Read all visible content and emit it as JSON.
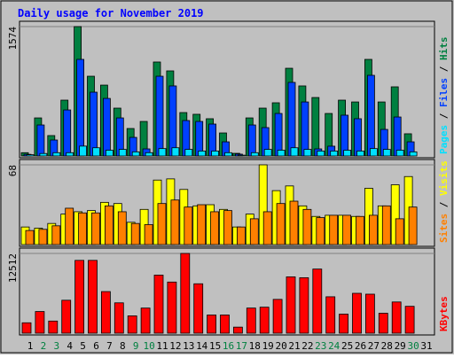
{
  "title": "Daily usage for November 2019",
  "chart_data": [
    {
      "type": "bar",
      "categories": [
        "1",
        "2",
        "3",
        "4",
        "5",
        "6",
        "7",
        "8",
        "9",
        "10",
        "11",
        "12",
        "13",
        "14",
        "15",
        "16",
        "17",
        "18",
        "19",
        "20",
        "21",
        "22",
        "23",
        "24",
        "25",
        "26",
        "27",
        "28",
        "29",
        "30",
        "31"
      ],
      "label_colors": [
        "#000000",
        "#008040",
        "#008040",
        "#000000",
        "#000000",
        "#000000",
        "#000000",
        "#000000",
        "#008040",
        "#008040",
        "#000000",
        "#000000",
        "#000000",
        "#000000",
        "#000000",
        "#008040",
        "#008040",
        "#000000",
        "#000000",
        "#000000",
        "#000000",
        "#000000",
        "#008040",
        "#008040",
        "#000000",
        "#000000",
        "#000000",
        "#000000",
        "#000000",
        "#008040",
        "#000000"
      ],
      "series": [
        {
          "name": "Hits",
          "color": "#008040",
          "values": [
            40,
            463,
            248,
            679,
            1574,
            970,
            862,
            582,
            334,
            420,
            1143,
            1035,
            528,
            507,
            453,
            280,
            32,
            463,
            582,
            647,
            1067,
            852,
            711,
            517,
            679,
            657,
            1175,
            657,
            841,
            270,
            0
          ]
        },
        {
          "name": "Files",
          "color": "#0040FF",
          "values": [
            20,
            377,
            194,
            560,
            1175,
            776,
            700,
            463,
            226,
            86,
            970,
            852,
            431,
            420,
            388,
            172,
            22,
            377,
            345,
            517,
            895,
            657,
            86,
            119,
            496,
            453,
            981,
            323,
            474,
            172,
            0
          ]
        },
        {
          "name": "Pages",
          "color": "#00E0FF",
          "values": [
            15,
            30,
            40,
            40,
            120,
            100,
            70,
            80,
            50,
            40,
            90,
            100,
            80,
            60,
            60,
            40,
            10,
            40,
            80,
            70,
            100,
            80,
            60,
            60,
            70,
            60,
            90,
            80,
            70,
            50,
            0
          ]
        }
      ],
      "ylim": [
        0,
        1574
      ],
      "yticks": [
        1574
      ],
      "grid": true
    },
    {
      "type": "bar",
      "series": [
        {
          "name": "Visits",
          "color": "#FFFF00",
          "values": [
            15,
            14,
            18,
            26,
            28,
            29,
            36,
            35,
            19,
            30,
            55,
            56,
            47,
            33,
            34,
            30,
            15,
            26,
            68,
            46,
            50,
            33,
            24,
            25,
            25,
            24,
            48,
            33,
            51,
            58,
            0
          ]
        },
        {
          "name": "Sites",
          "color": "#FF8000",
          "values": [
            12,
            13,
            16,
            31,
            27,
            27,
            33,
            28,
            18,
            17,
            35,
            38,
            32,
            34,
            28,
            29,
            15,
            22,
            28,
            35,
            37,
            30,
            23,
            25,
            25,
            24,
            25,
            33,
            22,
            32,
            0
          ]
        }
      ],
      "ylim": [
        0,
        68
      ],
      "yticks": [
        68
      ],
      "grid": true
    },
    {
      "type": "bar",
      "series": [
        {
          "name": "KBytes",
          "color": "#FF0000",
          "values": [
            1632,
            3400,
            1904,
            5168,
            11424,
            11424,
            6528,
            4760,
            2720,
            3944,
            9112,
            8024,
            12512,
            7752,
            2856,
            2856,
            952,
            3944,
            4080,
            5304,
            8840,
            8704,
            10064,
            5712,
            2992,
            6256,
            6120,
            3128,
            4896,
            4216,
            0
          ]
        }
      ],
      "ylim": [
        0,
        12512
      ],
      "yticks": [
        12512
      ],
      "grid": true
    }
  ]
}
